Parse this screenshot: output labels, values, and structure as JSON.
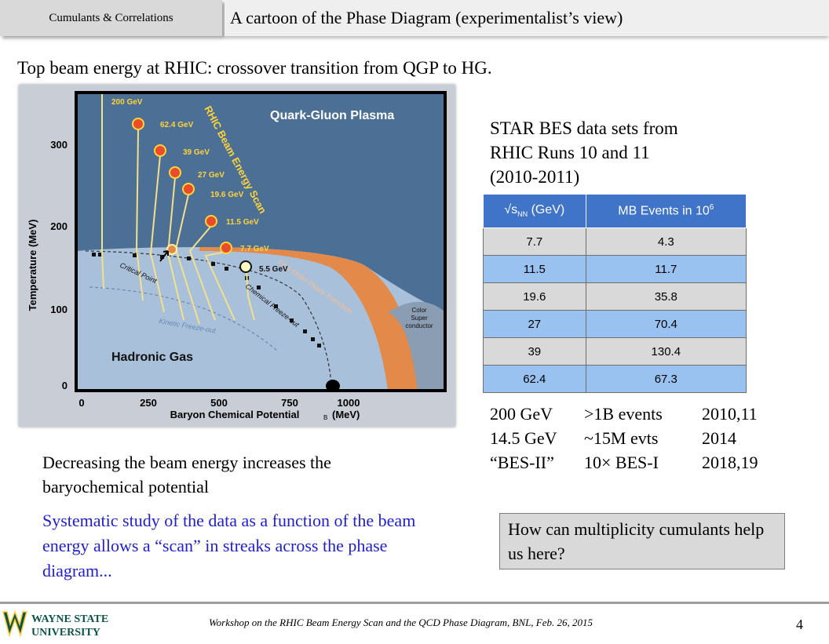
{
  "header": {
    "section_tab": "Cumulants & Correlations",
    "title": "A cartoon of the Phase Diagram (experimentalist’s view)"
  },
  "subtitle": "Top beam energy at RHIC: crossover transition from QGP to HG.",
  "diagram": {
    "y_axis_label": "Temperature (MeV)",
    "x_axis_label": "Baryon Chemical Potential",
    "x_unit": "(MeV)",
    "mu_subscript": "B",
    "y_ticks": [
      "300",
      "200",
      "100",
      "0"
    ],
    "x_ticks": [
      "0",
      "250",
      "500",
      "750",
      "1000"
    ],
    "qgp_label": "Quark-Gluon Plasma",
    "hadronic_label": "Hadronic Gas",
    "scan_label": "RHIC Beam Energy Scan",
    "transition_label": "First Order Phase Transition",
    "critical_point_label": "Critical Point",
    "chemical_fo_label": "Chemical Freeze-out",
    "kinetic_fo_label": "Kinetic Freeze-out",
    "color_super_label": [
      "Color",
      "Super",
      "conductor"
    ],
    "energies": [
      "200 GeV",
      "62.4 GeV",
      "39 GeV",
      "27 GeV",
      "19.6 GeV",
      "11.5 GeV",
      "7.7 GeV",
      "5.5 GeV"
    ]
  },
  "star": {
    "title_lines": [
      "STAR BES data sets from",
      "RHIC Runs 10 and 11",
      "(2010-2011)"
    ],
    "col1_sqrt": "√s",
    "col1_sub": "NN",
    "col1_unit": " (GeV)",
    "col2_header": "MB Events in 10",
    "col2_sup": "6",
    "rows": [
      {
        "energy": "7.7",
        "events": "4.3"
      },
      {
        "energy": "11.5",
        "events": "11.7"
      },
      {
        "energy": "19.6",
        "events": "35.8"
      },
      {
        "energy": "27",
        "events": "70.4"
      },
      {
        "energy": "39",
        "events": "130.4"
      },
      {
        "energy": "62.4",
        "events": "67.3"
      }
    ]
  },
  "runs": [
    {
      "energy": "200 GeV",
      "events": ">1B events",
      "years": "2010,11"
    },
    {
      "energy": "14.5 GeV",
      "events": "~15M evts",
      "years": "2014"
    },
    {
      "energy": "“BES-II”",
      "events": "10× BES-I",
      "years": "2018,19"
    }
  ],
  "decreasing_text": "Decreasing the beam energy increases the baryochemical potential",
  "systematic_text": "Systematic study of the data as a function of the beam energy allows a “scan” in streaks across the phase diagram...",
  "question": "How can multiplicity cumulants help us here?",
  "footer": {
    "logo_line1": "WAYNE STATE",
    "logo_line2": "UNIVERSITY",
    "workshop": "Workshop on the RHIC Beam Energy Scan and the QCD Phase Diagram, BNL, Feb. 26, 2015",
    "page": "4"
  },
  "colors": {
    "qgp_blue": "#4b6f95",
    "hadronic": "#a9c0da",
    "transition_orange": "#e3894a",
    "table_header": "#3f74c8",
    "table_blue_row": "#99c2f1",
    "systematic_text": "#1f1fd0",
    "wsu_green": "#0c5449",
    "wsu_gold": "#ffcc33"
  }
}
